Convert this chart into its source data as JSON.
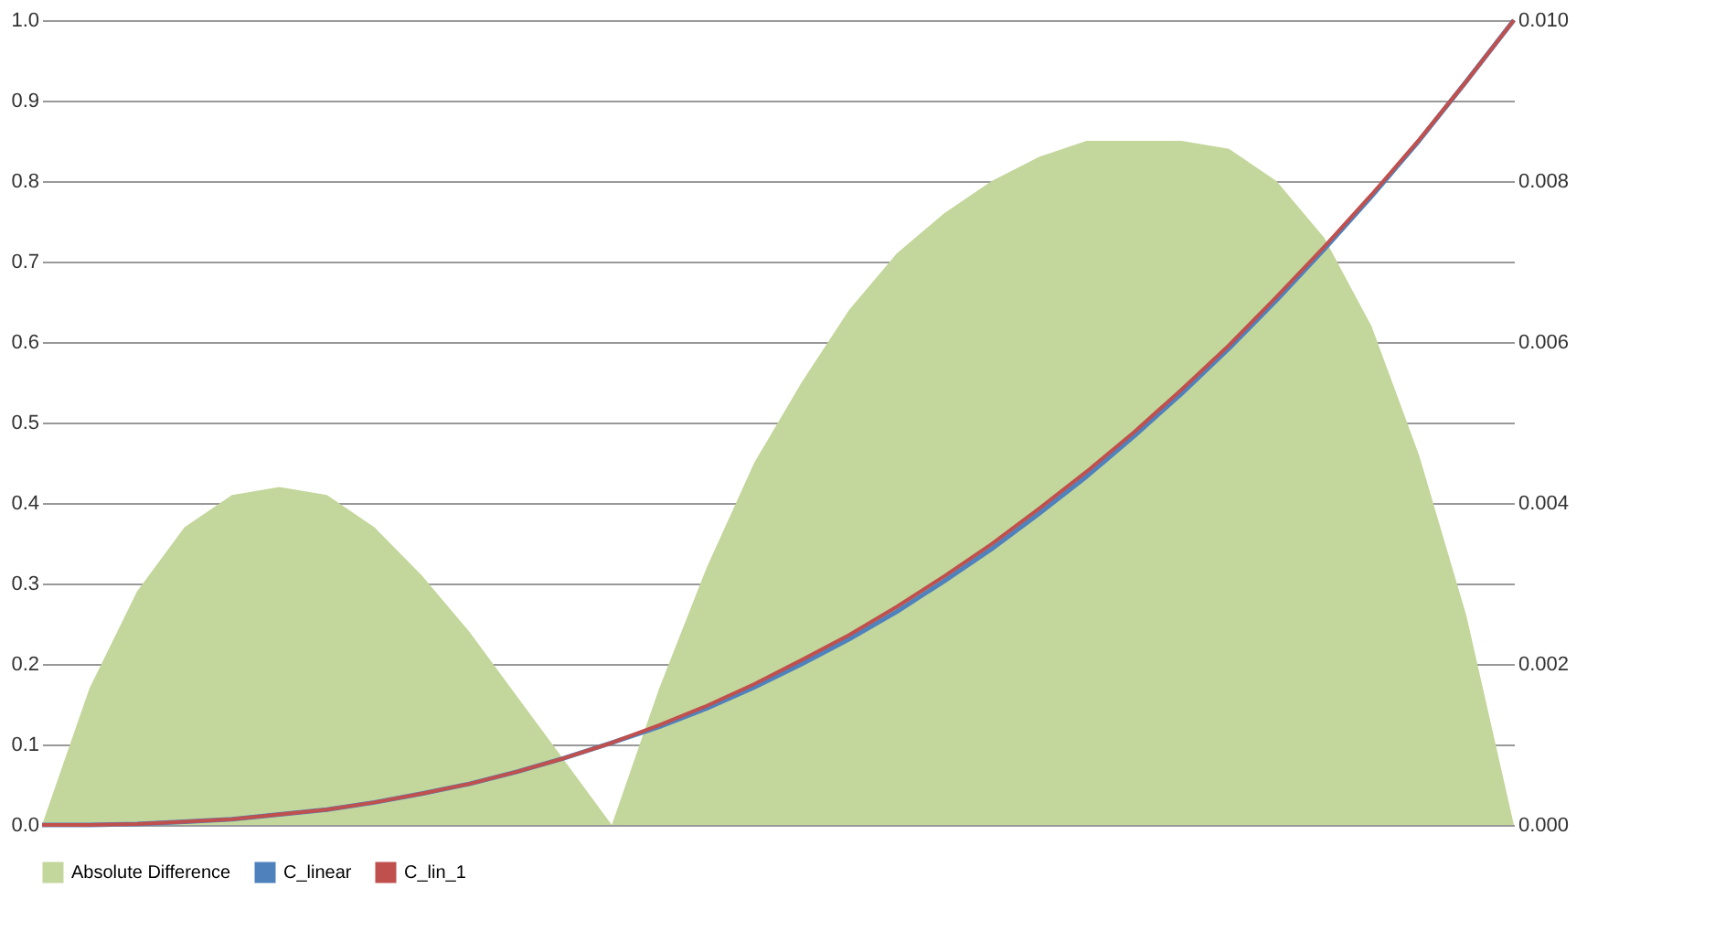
{
  "chart_data": {
    "type": "line",
    "categories": [
      null,
      null,
      null,
      null,
      null,
      null,
      null,
      null,
      null,
      null,
      null,
      null,
      null,
      null,
      null,
      null,
      null,
      null,
      null,
      null,
      null,
      null,
      null,
      null,
      null,
      null,
      null,
      null,
      null,
      null,
      null,
      null
    ],
    "series": [
      {
        "name": "Absolute Difference",
        "type": "area",
        "axis": "y2",
        "color": "#c3d69b",
        "values": [
          0,
          0.0017,
          0.0029,
          0.0037,
          0.0041,
          0.0042,
          0.0041,
          0.0037,
          0.0031,
          0.0024,
          0.0016,
          0.0008,
          0,
          0.0017,
          0.0032,
          0.0045,
          0.0055,
          0.0064,
          0.0071,
          0.0076,
          0.008,
          0.0083,
          0.0085,
          0.0085,
          0.0085,
          0.0084,
          0.008,
          0.0073,
          0.0062,
          0.0046,
          0.0026,
          0
        ]
      },
      {
        "name": "C_linear",
        "color": "#4f81bd",
        "values": [
          0,
          0,
          0.001,
          0.004,
          0.007,
          0.013,
          0.019,
          0.028,
          0.039,
          0.051,
          0.066,
          0.083,
          0.102,
          0.122,
          0.145,
          0.171,
          0.2,
          0.231,
          0.265,
          0.303,
          0.343,
          0.387,
          0.433,
          0.483,
          0.536,
          0.592,
          0.652,
          0.715,
          0.781,
          0.85,
          0.924,
          1
        ]
      },
      {
        "name": "C_lin_1",
        "color": "#c0504d",
        "values": [
          0,
          0,
          0.001,
          0.004,
          0.007,
          0.013,
          0.019,
          0.028,
          0.039,
          0.051,
          0.066,
          0.083,
          0.102,
          0.124,
          0.148,
          0.175,
          0.205,
          0.236,
          0.271,
          0.309,
          0.349,
          0.393,
          0.439,
          0.488,
          0.541,
          0.596,
          0.656,
          0.718,
          0.783,
          0.851,
          0.924,
          1
        ]
      }
    ],
    "ylim": [
      0,
      1.0
    ],
    "yticks": [
      {
        "value": 0,
        "label": "0.0"
      },
      0.1,
      0.2,
      0.3,
      0.4,
      0.5,
      0.6,
      0.7,
      0.8,
      0.9,
      {
        "value": 1,
        "label": "1.0"
      }
    ],
    "y2lim": [
      0,
      0.01
    ],
    "y2ticks": [
      {
        "value": 0,
        "label": "0.000"
      },
      0.002,
      0.004,
      0.006,
      0.008,
      {
        "value": 0.01,
        "label": "0.010"
      }
    ],
    "grid": "y",
    "legend": "bottom"
  }
}
